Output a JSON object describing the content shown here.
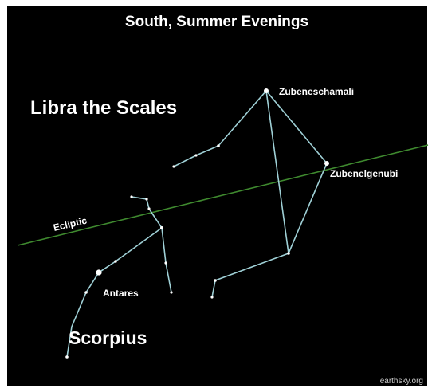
{
  "title": "South, Summer Evenings",
  "constellations": [
    {
      "name": "Libra the Scales"
    },
    {
      "name": "Scorpius"
    }
  ],
  "stars": [
    {
      "name": "Zubeneschamali"
    },
    {
      "name": "Zubenelgenubi"
    },
    {
      "name": "Antares"
    }
  ],
  "ecliptic": "Ecliptic",
  "credit": "earthsky.org"
}
